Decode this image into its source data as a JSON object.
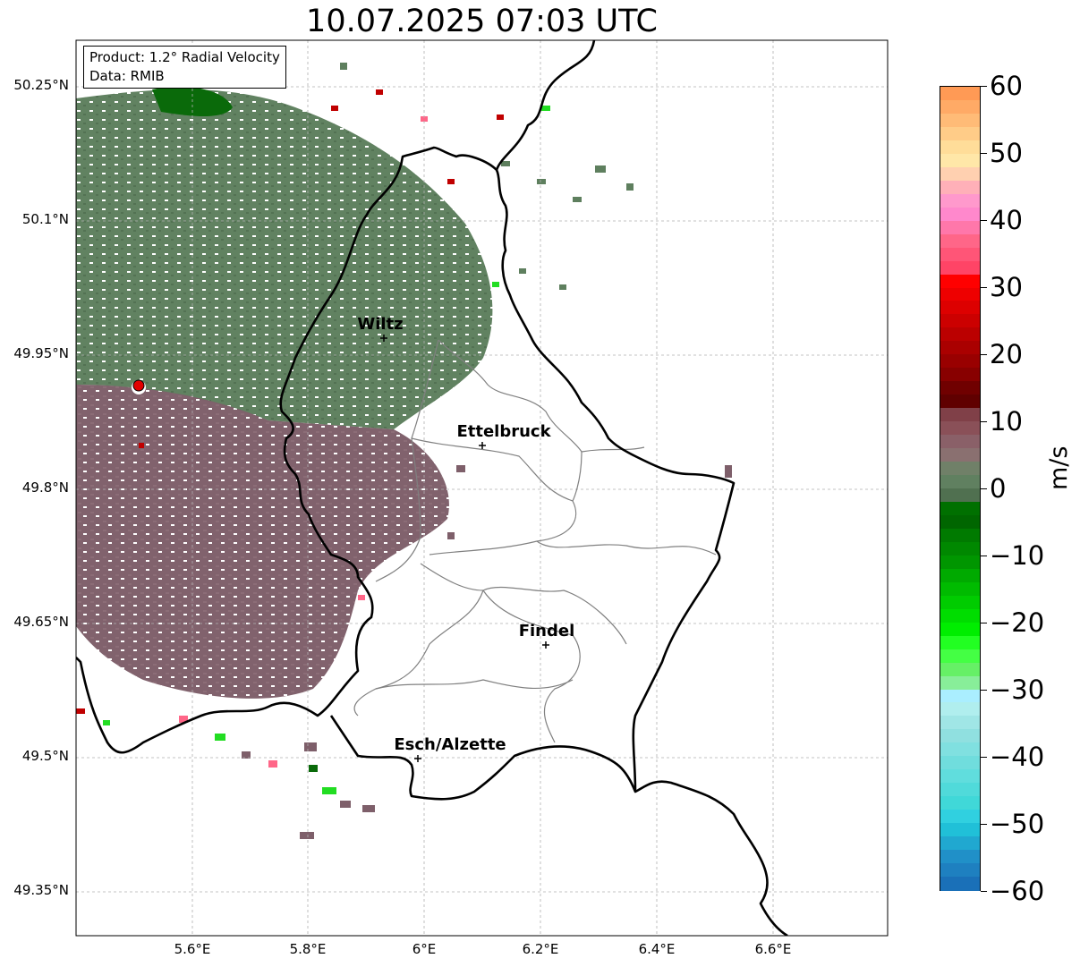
{
  "title": "10.07.2025 07:03 UTC",
  "info": {
    "product": "Product: 1.2° Radial Velocity",
    "data": "Data: RMIB"
  },
  "axes": {
    "lat_labels": [
      "50.25°N",
      "50.1°N",
      "49.95°N",
      "49.8°N",
      "49.65°N",
      "49.5°N",
      "49.35°N"
    ],
    "lon_labels": [
      "5.6°E",
      "5.8°E",
      "6°E",
      "6.2°E",
      "6.4°E",
      "6.6°E"
    ]
  },
  "cities": [
    {
      "name": "Wiltz"
    },
    {
      "name": "Ettelbruck"
    },
    {
      "name": "Findel"
    },
    {
      "name": "Esch/Alzette"
    }
  ],
  "colorbar": {
    "unit": "m/s",
    "ticks": [
      "60",
      "50",
      "40",
      "30",
      "20",
      "10",
      "0",
      "−10",
      "−20",
      "−30",
      "−40",
      "−50",
      "−60"
    ],
    "range": [
      -60,
      60
    ]
  },
  "colors": {
    "radar_green": "#5e7f5e",
    "radar_purple": "#7e5f6a",
    "radar_darkgreen": "#0a6a0a",
    "radar_red": "#c00000",
    "radar_site": "#e00000"
  }
}
